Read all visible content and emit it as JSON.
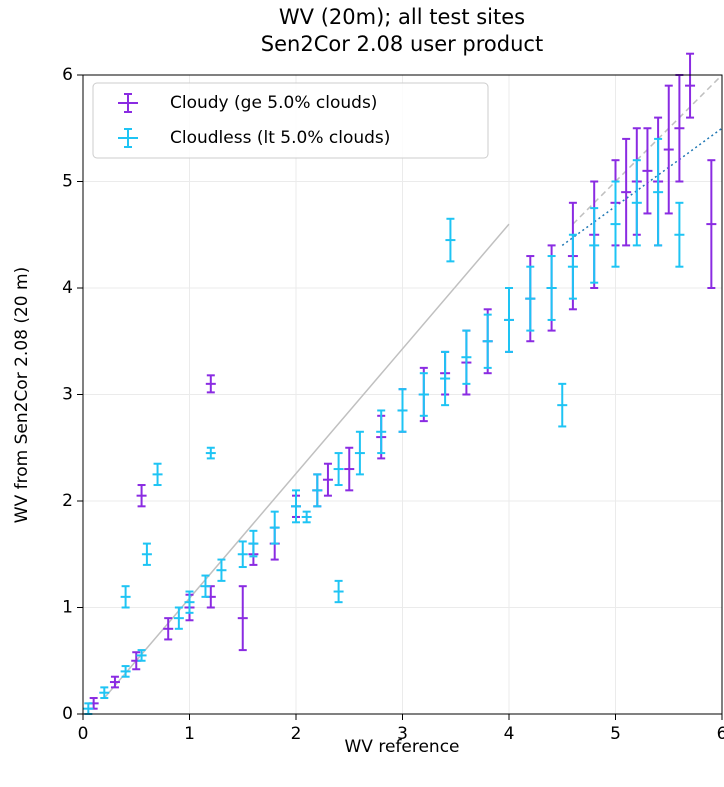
{
  "chart_data": {
    "type": "scatter",
    "title": "WV (20m); all test sites",
    "subtitle": "Sen2Cor 2.08 user product",
    "x_label": "WV reference",
    "y_label": "WV from Sen2Cor 2.08 (20 m)",
    "xlim": [
      0,
      6
    ],
    "ylim": [
      0,
      6
    ],
    "xticks": [
      0,
      1,
      2,
      3,
      4,
      5,
      6
    ],
    "yticks": [
      0,
      1,
      2,
      3,
      4,
      5,
      6
    ],
    "grid": true,
    "legend": "upper left",
    "series": [
      {
        "name": "Cloudy (ge 5.0% clouds)",
        "color": "#8a2be2",
        "x": [
          0.1,
          0.3,
          0.5,
          0.55,
          0.8,
          1.0,
          1.2,
          1.2,
          1.5,
          1.6,
          1.8,
          2.0,
          2.2,
          2.3,
          2.5,
          2.8,
          3.0,
          3.2,
          3.4,
          3.6,
          3.8,
          4.0,
          4.2,
          4.4,
          4.6,
          4.8,
          5.0,
          5.1,
          5.2,
          5.3,
          5.4,
          5.5,
          5.6,
          5.7,
          5.9
        ],
        "values": [
          0.1,
          0.3,
          0.5,
          2.05,
          0.8,
          1.0,
          1.1,
          3.1,
          0.9,
          1.5,
          1.6,
          1.95,
          2.1,
          2.2,
          2.3,
          2.6,
          2.85,
          3.0,
          3.2,
          3.3,
          3.5,
          3.7,
          3.9,
          4.0,
          4.3,
          4.5,
          4.8,
          4.9,
          5.0,
          5.1,
          5.0,
          5.3,
          5.5,
          5.9,
          4.6
        ],
        "errors": [
          0.05,
          0.05,
          0.08,
          0.1,
          0.1,
          0.12,
          0.1,
          0.08,
          0.3,
          0.1,
          0.15,
          0.1,
          0.15,
          0.15,
          0.2,
          0.2,
          0.2,
          0.25,
          0.2,
          0.3,
          0.3,
          0.3,
          0.4,
          0.4,
          0.5,
          0.5,
          0.4,
          0.5,
          0.5,
          0.4,
          0.6,
          0.6,
          0.5,
          0.3,
          0.6
        ]
      },
      {
        "name": "Cloudless (lt 5.0% clouds)",
        "color": "#1ec4f4",
        "x": [
          0.05,
          0.2,
          0.4,
          0.6,
          0.7,
          0.55,
          0.9,
          1.0,
          1.15,
          1.3,
          1.5,
          1.6,
          1.8,
          2.0,
          2.2,
          2.4,
          2.6,
          2.8,
          3.0,
          3.2,
          3.4,
          3.6,
          3.8,
          4.0,
          4.2,
          4.4,
          4.6,
          4.8,
          5.0,
          5.2,
          5.4,
          5.6,
          3.45,
          2.4,
          1.2,
          2.1,
          0.4,
          4.5
        ],
        "values": [
          0.05,
          0.2,
          0.4,
          1.5,
          2.25,
          0.55,
          0.9,
          1.05,
          1.2,
          1.35,
          1.5,
          1.6,
          1.75,
          1.95,
          2.1,
          2.3,
          2.45,
          2.65,
          2.85,
          3.0,
          3.15,
          3.35,
          3.5,
          3.7,
          3.9,
          4.0,
          4.2,
          4.4,
          4.6,
          4.8,
          4.9,
          4.5,
          4.45,
          1.15,
          2.45,
          1.85,
          1.1,
          2.9
        ],
        "errors": [
          0.05,
          0.05,
          0.05,
          0.1,
          0.1,
          0.05,
          0.1,
          0.1,
          0.1,
          0.1,
          0.12,
          0.12,
          0.15,
          0.15,
          0.15,
          0.15,
          0.2,
          0.2,
          0.2,
          0.2,
          0.25,
          0.25,
          0.25,
          0.3,
          0.3,
          0.3,
          0.3,
          0.35,
          0.4,
          0.4,
          0.5,
          0.3,
          0.2,
          0.1,
          0.05,
          0.05,
          0.1,
          0.2
        ]
      }
    ],
    "lines": [
      {
        "x": [
          0.2,
          4
        ],
        "y": [
          0.15,
          4.6
        ],
        "color": "#c0c0c0",
        "style": "solid"
      },
      {
        "x": [
          4.6,
          6
        ],
        "y": [
          4.6,
          6
        ],
        "color": "#c0c0c0",
        "style": "dashed"
      },
      {
        "x": [
          4.5,
          6
        ],
        "y": [
          4.4,
          5.5
        ],
        "color": "#1f77b4",
        "style": "dotted"
      }
    ]
  }
}
